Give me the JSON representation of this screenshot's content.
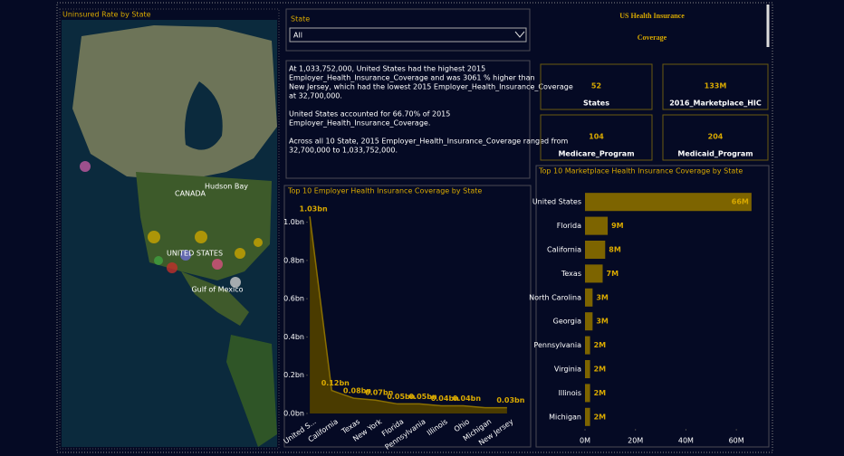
{
  "header": {
    "title": "US Health Insurance Coverage"
  },
  "slicer": {
    "label": "State",
    "value": "All"
  },
  "narrative": [
    [
      "At 1,033,752,000, United States had the highest 2015",
      "Employer_Health_Insurance_Coverage and was 3061 % higher than",
      "New Jersey, which had the lowest 2015 Employer_Health_Insurance_Coverage",
      "at 32,700,000."
    ],
    [
      "United States accounted for 66.70% of 2015",
      "Employer_Health_Insurance_Coverage."
    ],
    [
      "Across all 10 State, 2015 Employer_Health_Insurance_Coverage ranged from",
      "32,700,000 to 1,033,752,000."
    ]
  ],
  "kpis": [
    {
      "value": "52",
      "label": "States"
    },
    {
      "value": "133M",
      "label": "2016_Marketplace_HIC"
    },
    {
      "value": "104",
      "label": "Medicare_Program"
    },
    {
      "value": "204",
      "label": "Medicaid_Program"
    }
  ],
  "map": {
    "title": "Uninsured Rate by State",
    "labels": [
      "CANADA",
      "UNITED STATES",
      "Gulf of Mexico",
      "Hudson Bay"
    ]
  },
  "chart_data": [
    {
      "type": "area",
      "title": "Top 10 Employer Health Insurance Coverage by State",
      "color": "#4a3b00",
      "categories": [
        "United S...",
        "California",
        "Texas",
        "New York",
        "Florida",
        "Pennsylvania",
        "Illinois",
        "Ohio",
        "Michigan",
        "New Jersey"
      ],
      "values": [
        1.03,
        0.12,
        0.08,
        0.07,
        0.05,
        0.05,
        0.04,
        0.04,
        0.03,
        0.03
      ],
      "value_labels": [
        "1.03bn",
        "0.12bn",
        "0.08bn",
        "0.07bn",
        "0.05bn",
        "0.05bn",
        "0.04bn",
        "0.04bn",
        null,
        "0.03bn"
      ],
      "ylim": [
        0,
        1.05
      ],
      "yticks": [
        {
          "value": 0,
          "label": "0.0bn"
        },
        {
          "value": 0.2,
          "label": "0.2bn"
        },
        {
          "value": 0.4,
          "label": "0.4bn"
        },
        {
          "value": 0.6,
          "label": "0.6bn"
        },
        {
          "value": 0.8,
          "label": "0.8bn"
        },
        {
          "value": 1.0,
          "label": "1.0bn"
        }
      ]
    },
    {
      "type": "hbar",
      "title": "Top 10 Marketplace Health Insurance Coverage by State",
      "color": "#7d6400",
      "categories": [
        "United States",
        "Florida",
        "California",
        "Texas",
        "North Carolina",
        "Georgia",
        "Pennsylvania",
        "Virginia",
        "Illinois",
        "Michigan"
      ],
      "values": [
        66,
        9,
        8,
        7,
        3,
        3,
        2,
        2,
        2,
        2
      ],
      "value_labels": [
        "66M",
        "9M",
        "8M",
        "7M",
        "3M",
        "3M",
        "2M",
        "2M",
        "2M",
        "2M"
      ],
      "xlim": [
        0,
        70
      ],
      "xticks": [
        {
          "value": 0,
          "label": "0M"
        },
        {
          "value": 20,
          "label": "20M"
        },
        {
          "value": 40,
          "label": "40M"
        },
        {
          "value": 60,
          "label": "60M"
        }
      ]
    }
  ]
}
